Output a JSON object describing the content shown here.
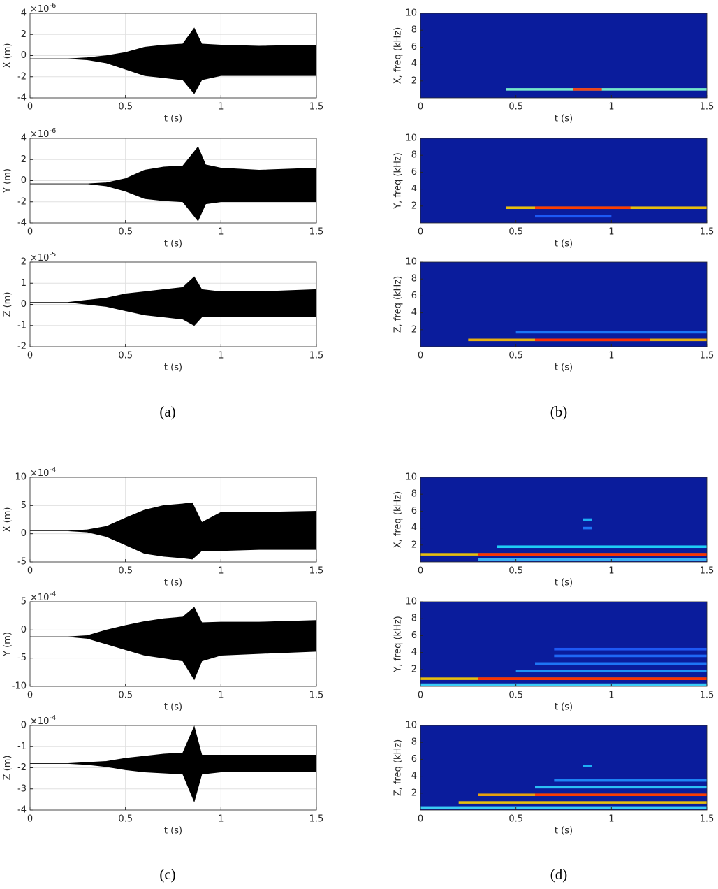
{
  "captions": [
    "(a)",
    "(b)",
    "(c)",
    "(d)"
  ],
  "chart_data": [
    {
      "type": "area",
      "ylabel": "X (m)",
      "xlabel": "t (s)",
      "multiplier": "×10",
      "exponent": "-6",
      "grid": true,
      "xlim": [
        0,
        1.5
      ],
      "xticks": [
        0,
        0.5,
        1,
        1.5
      ],
      "ylim": [
        -4,
        4
      ],
      "yticks": [
        -4,
        -2,
        0,
        2,
        4
      ],
      "x": [
        0,
        0.2,
        0.3,
        0.4,
        0.5,
        0.6,
        0.7,
        0.8,
        0.86,
        0.9,
        1.0,
        1.2,
        1.5
      ],
      "series": [
        {
          "color": "#000000",
          "values": [
            -0.3,
            -0.3,
            -0.2,
            0,
            0.3,
            0.8,
            1.0,
            1.1,
            2.6,
            1.1,
            1.0,
            0.9,
            1.0
          ]
        },
        {
          "color": "#000000",
          "values": [
            -0.3,
            -0.3,
            -0.4,
            -0.7,
            -1.3,
            -1.9,
            -2.1,
            -2.3,
            -3.6,
            -2.3,
            -1.9,
            -1.9,
            -1.9
          ]
        }
      ]
    },
    {
      "type": "area",
      "ylabel": "Y (m)",
      "xlabel": "t (s)",
      "multiplier": "×10",
      "exponent": "-6",
      "grid": true,
      "xlim": [
        0,
        1.5
      ],
      "xticks": [
        0,
        0.5,
        1,
        1.5
      ],
      "ylim": [
        -4,
        4
      ],
      "yticks": [
        -4,
        -2,
        0,
        2,
        4
      ],
      "x": [
        0,
        0.2,
        0.3,
        0.4,
        0.5,
        0.6,
        0.7,
        0.8,
        0.88,
        0.92,
        1.0,
        1.2,
        1.5
      ],
      "series": [
        {
          "color": "#000000",
          "values": [
            -0.3,
            -0.3,
            -0.3,
            -0.2,
            0.2,
            1.0,
            1.3,
            1.4,
            3.2,
            1.5,
            1.2,
            1.0,
            1.2
          ]
        },
        {
          "color": "#000000",
          "values": [
            -0.3,
            -0.3,
            -0.3,
            -0.5,
            -1.0,
            -1.7,
            -1.9,
            -2.0,
            -3.8,
            -2.2,
            -2.0,
            -2.0,
            -2.0
          ]
        }
      ]
    },
    {
      "type": "area",
      "ylabel": "Z (m)",
      "xlabel": "t (s)",
      "multiplier": "×10",
      "exponent": "-5",
      "grid": true,
      "xlim": [
        0,
        1.5
      ],
      "xticks": [
        0,
        0.5,
        1,
        1.5
      ],
      "ylim": [
        -2,
        2
      ],
      "yticks": [
        -2,
        -1,
        0,
        1,
        2
      ],
      "x": [
        0,
        0.2,
        0.3,
        0.4,
        0.5,
        0.6,
        0.7,
        0.8,
        0.86,
        0.9,
        1.0,
        1.2,
        1.5
      ],
      "series": [
        {
          "color": "#000000",
          "values": [
            0.1,
            0.1,
            0.2,
            0.3,
            0.5,
            0.6,
            0.7,
            0.8,
            1.3,
            0.7,
            0.6,
            0.6,
            0.7
          ]
        },
        {
          "color": "#000000",
          "values": [
            0.1,
            0.1,
            0,
            -0.1,
            -0.3,
            -0.5,
            -0.6,
            -0.7,
            -1.0,
            -0.6,
            -0.6,
            -0.6,
            -0.6
          ]
        }
      ]
    },
    {
      "type": "spectrogram",
      "ylabel": "X, freq (kHz)",
      "xlabel": "t (s)",
      "background": "#0a1c9c",
      "xlim": [
        0,
        1.5
      ],
      "xticks": [
        0,
        0.5,
        1,
        1.5
      ],
      "ylim": [
        0,
        10
      ],
      "yticks": [
        2,
        4,
        6,
        8,
        10
      ],
      "bands": [
        {
          "freq": 1.0,
          "start": 0.45,
          "end": 1.5,
          "color": "#7fffd0"
        },
        {
          "freq": 1.0,
          "start": 0.8,
          "end": 0.95,
          "color": "#ff3000"
        }
      ]
    },
    {
      "type": "spectrogram",
      "ylabel": "Y, freq (kHz)",
      "xlabel": "t (s)",
      "background": "#0a1c9c",
      "xlim": [
        0,
        1.5
      ],
      "xticks": [
        0,
        0.5,
        1,
        1.5
      ],
      "ylim": [
        0,
        10
      ],
      "yticks": [
        2,
        4,
        6,
        8,
        10
      ],
      "bands": [
        {
          "freq": 1.8,
          "start": 0.45,
          "end": 1.5,
          "color": "#ffd000"
        },
        {
          "freq": 1.8,
          "start": 0.6,
          "end": 1.1,
          "color": "#ff3000"
        },
        {
          "freq": 0.8,
          "start": 0.6,
          "end": 1.0,
          "color": "#1e60ff"
        }
      ]
    },
    {
      "type": "spectrogram",
      "ylabel": "Z, freq (kHz)",
      "xlabel": "t (s)",
      "background": "#0a1c9c",
      "xlim": [
        0,
        1.5
      ],
      "xticks": [
        0,
        0.5,
        1,
        1.5
      ],
      "ylim": [
        0,
        10
      ],
      "yticks": [
        2,
        4,
        6,
        8,
        10
      ],
      "bands": [
        {
          "freq": 0.8,
          "start": 0.25,
          "end": 1.5,
          "color": "#ffc000"
        },
        {
          "freq": 0.8,
          "start": 0.6,
          "end": 1.2,
          "color": "#ff2000"
        },
        {
          "freq": 1.7,
          "start": 0.5,
          "end": 1.5,
          "color": "#1e80ff"
        }
      ]
    },
    {
      "type": "area",
      "ylabel": "X (m)",
      "xlabel": "t (s)",
      "multiplier": "×10",
      "exponent": "-4",
      "grid": true,
      "xlim": [
        0,
        1.5
      ],
      "xticks": [
        0,
        0.5,
        1,
        1.5
      ],
      "ylim": [
        -5,
        10
      ],
      "yticks": [
        -5,
        0,
        5,
        10
      ],
      "x": [
        0,
        0.2,
        0.3,
        0.4,
        0.5,
        0.6,
        0.7,
        0.8,
        0.85,
        0.9,
        1.0,
        1.2,
        1.5
      ],
      "series": [
        {
          "color": "#000000",
          "values": [
            0.5,
            0.5,
            0.7,
            1.3,
            2.8,
            4.2,
            5,
            5.3,
            5.5,
            2,
            3.8,
            3.8,
            4
          ]
        },
        {
          "color": "#000000",
          "values": [
            0.5,
            0.5,
            0.3,
            -0.5,
            -2,
            -3.5,
            -4,
            -4.3,
            -4.5,
            -3,
            -3,
            -2.8,
            -2.8
          ]
        }
      ]
    },
    {
      "type": "area",
      "ylabel": "Y (m)",
      "xlabel": "t (s)",
      "multiplier": "×10",
      "exponent": "-4",
      "grid": true,
      "xlim": [
        0,
        1.5
      ],
      "xticks": [
        0,
        0.5,
        1,
        1.5
      ],
      "ylim": [
        -10,
        5
      ],
      "yticks": [
        -10,
        -5,
        0,
        5
      ],
      "x": [
        0,
        0.2,
        0.3,
        0.4,
        0.5,
        0.6,
        0.7,
        0.8,
        0.86,
        0.9,
        1.0,
        1.2,
        1.5
      ],
      "series": [
        {
          "color": "#000000",
          "values": [
            -1.2,
            -1.2,
            -1,
            0,
            0.8,
            1.5,
            2,
            2.3,
            4,
            1.3,
            1.4,
            1.4,
            1.7
          ]
        },
        {
          "color": "#000000",
          "values": [
            -1.2,
            -1.2,
            -1.5,
            -2.5,
            -3.5,
            -4.5,
            -5,
            -5.5,
            -8.8,
            -5.5,
            -4.5,
            -4.2,
            -3.8
          ]
        }
      ]
    },
    {
      "type": "area",
      "ylabel": "Z (m)",
      "xlabel": "t (s)",
      "multiplier": "×10",
      "exponent": "-4",
      "grid": true,
      "xlim": [
        0,
        1.5
      ],
      "xticks": [
        0,
        0.5,
        1,
        1.5
      ],
      "ylim": [
        -4,
        0
      ],
      "yticks": [
        -4,
        -3,
        -2,
        -1,
        0
      ],
      "x": [
        0,
        0.2,
        0.3,
        0.4,
        0.5,
        0.6,
        0.7,
        0.8,
        0.86,
        0.9,
        1.0,
        1.2,
        1.5
      ],
      "series": [
        {
          "color": "#000000",
          "values": [
            -1.8,
            -1.8,
            -1.75,
            -1.7,
            -1.55,
            -1.45,
            -1.35,
            -1.3,
            -0.05,
            -1.4,
            -1.4,
            -1.4,
            -1.4
          ]
        },
        {
          "color": "#000000",
          "values": [
            -1.8,
            -1.8,
            -1.85,
            -1.95,
            -2.1,
            -2.2,
            -2.25,
            -2.3,
            -3.6,
            -2.3,
            -2.2,
            -2.2,
            -2.2
          ]
        }
      ]
    },
    {
      "type": "spectrogram",
      "ylabel": "X, freq (kHz)",
      "xlabel": "t (s)",
      "background": "#0a1c9c",
      "xlim": [
        0,
        1.5
      ],
      "xticks": [
        0,
        0.5,
        1,
        1.5
      ],
      "ylim": [
        0,
        10
      ],
      "yticks": [
        2,
        4,
        6,
        8,
        10
      ],
      "bands": [
        {
          "freq": 0.9,
          "start": 0,
          "end": 1.5,
          "color": "#ffd000"
        },
        {
          "freq": 0.9,
          "start": 0.3,
          "end": 1.5,
          "color": "#ff2000"
        },
        {
          "freq": 1.8,
          "start": 0.4,
          "end": 1.5,
          "color": "#20e0ff"
        },
        {
          "freq": 0.3,
          "start": 0.3,
          "end": 1.5,
          "color": "#40c0ff"
        },
        {
          "freq": 5.0,
          "start": 0.85,
          "end": 0.9,
          "color": "#20c0ff"
        },
        {
          "freq": 4.0,
          "start": 0.85,
          "end": 0.9,
          "color": "#2080ff"
        }
      ]
    },
    {
      "type": "spectrogram",
      "ylabel": "Y, freq (kHz)",
      "xlabel": "t (s)",
      "background": "#0a1c9c",
      "xlim": [
        0,
        1.5
      ],
      "xticks": [
        0,
        0.5,
        1,
        1.5
      ],
      "ylim": [
        0,
        10
      ],
      "yticks": [
        2,
        4,
        6,
        8,
        10
      ],
      "bands": [
        {
          "freq": 0.9,
          "start": 0,
          "end": 1.5,
          "color": "#ffd000"
        },
        {
          "freq": 0.9,
          "start": 0.3,
          "end": 1.5,
          "color": "#ff2000"
        },
        {
          "freq": 1.8,
          "start": 0.5,
          "end": 1.5,
          "color": "#20a0ff"
        },
        {
          "freq": 2.7,
          "start": 0.6,
          "end": 1.5,
          "color": "#2080ff"
        },
        {
          "freq": 3.6,
          "start": 0.7,
          "end": 1.5,
          "color": "#2070ff"
        },
        {
          "freq": 4.4,
          "start": 0.7,
          "end": 1.5,
          "color": "#2060ff"
        },
        {
          "freq": 0.2,
          "start": 0,
          "end": 1.5,
          "color": "#40e0ff"
        }
      ]
    },
    {
      "type": "spectrogram",
      "ylabel": "Z, freq (kHz)",
      "xlabel": "t (s)",
      "background": "#0a1c9c",
      "xlim": [
        0,
        1.5
      ],
      "xticks": [
        0,
        0.5,
        1,
        1.5
      ],
      "ylim": [
        0,
        10
      ],
      "yticks": [
        2,
        4,
        6,
        8,
        10
      ],
      "bands": [
        {
          "freq": 0.9,
          "start": 0.2,
          "end": 1.5,
          "color": "#ffd000"
        },
        {
          "freq": 1.8,
          "start": 0.3,
          "end": 1.5,
          "color": "#ffb000"
        },
        {
          "freq": 1.8,
          "start": 0.6,
          "end": 1.5,
          "color": "#ff3000"
        },
        {
          "freq": 2.7,
          "start": 0.6,
          "end": 1.5,
          "color": "#30d0ff"
        },
        {
          "freq": 3.5,
          "start": 0.7,
          "end": 1.5,
          "color": "#2090ff"
        },
        {
          "freq": 0.3,
          "start": 0,
          "end": 1.5,
          "color": "#40e0ff"
        },
        {
          "freq": 5.2,
          "start": 0.85,
          "end": 0.9,
          "color": "#20c0ff"
        }
      ]
    }
  ]
}
